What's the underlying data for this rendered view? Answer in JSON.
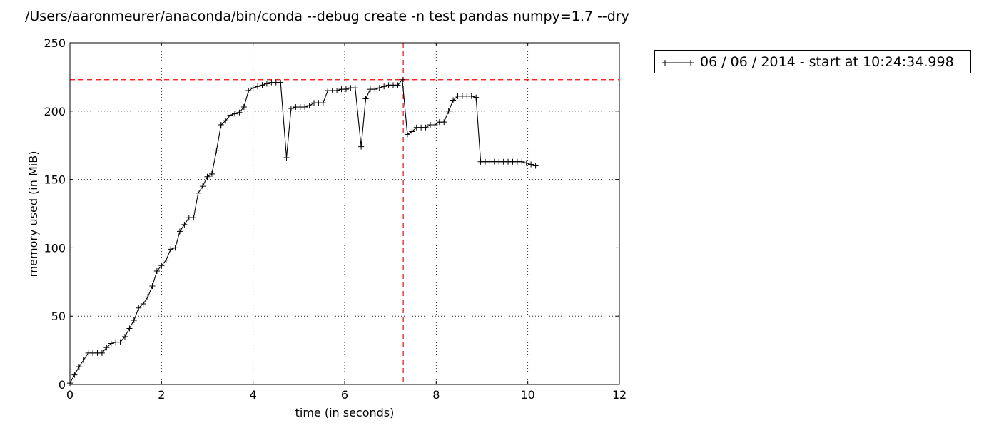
{
  "header": {
    "title": "/Users/aaronmeurer/anaconda/bin/conda --debug create -n test pandas numpy=1.7 --dry"
  },
  "legend": {
    "placement": "outside-right-top"
  },
  "chart_data": {
    "type": "line",
    "xlabel": "time (in seconds)",
    "ylabel": "memory used (in MiB)",
    "xlim": [
      0,
      12
    ],
    "ylim": [
      0,
      250
    ],
    "xticks": [
      0,
      2,
      4,
      6,
      8,
      10,
      12
    ],
    "yticks": [
      0,
      50,
      100,
      150,
      200,
      250
    ],
    "grid": true,
    "grid_style": "dotted",
    "marker": "+",
    "line_color": "#000000",
    "reference_lines": {
      "color": "#ff0000",
      "style": "dashed",
      "max_memory_y": 223,
      "max_time_x": 7.28
    },
    "series": [
      {
        "name": "06 / 06 / 2014 - start at 10:24:34.998",
        "x": [
          0,
          0.1,
          0.2,
          0.3,
          0.4,
          0.5,
          0.6,
          0.7,
          0.8,
          0.9,
          1.0,
          1.1,
          1.2,
          1.3,
          1.4,
          1.5,
          1.6,
          1.7,
          1.8,
          1.9,
          2.0,
          2.1,
          2.2,
          2.3,
          2.4,
          2.5,
          2.6,
          2.7,
          2.8,
          2.9,
          3.0,
          3.1,
          3.2,
          3.3,
          3.4,
          3.5,
          3.6,
          3.7,
          3.8,
          3.9,
          4.0,
          4.1,
          4.2,
          4.3,
          4.4,
          4.5,
          4.6,
          4.73,
          4.83,
          4.93,
          5.03,
          5.13,
          5.23,
          5.33,
          5.43,
          5.53,
          5.63,
          5.73,
          5.83,
          5.93,
          6.03,
          6.13,
          6.23,
          6.36,
          6.46,
          6.56,
          6.66,
          6.76,
          6.86,
          6.96,
          7.06,
          7.16,
          7.26,
          7.37,
          7.47,
          7.57,
          7.67,
          7.77,
          7.87,
          7.97,
          8.07,
          8.17,
          8.27,
          8.37,
          8.47,
          8.57,
          8.67,
          8.77,
          8.87,
          8.97,
          9.07,
          9.17,
          9.27,
          9.37,
          9.47,
          9.57,
          9.67,
          9.77,
          9.87,
          9.97,
          10.07,
          10.17
        ],
        "values": [
          1,
          7,
          13,
          18,
          23,
          23,
          23,
          23,
          27,
          30,
          31,
          31,
          35,
          41,
          47,
          56,
          59,
          64,
          72,
          83,
          87,
          91,
          99,
          100,
          112,
          117,
          122,
          122,
          140,
          145,
          152,
          154,
          171,
          190,
          193,
          197,
          198,
          199,
          203,
          215,
          217,
          218,
          219,
          220,
          221,
          221,
          221,
          166,
          202,
          203,
          203,
          203,
          204,
          206,
          206,
          206,
          215,
          215,
          215,
          216,
          216,
          217,
          217,
          174,
          209,
          216,
          216,
          217,
          218,
          219,
          219,
          219,
          223,
          183,
          185,
          188,
          188,
          188,
          190,
          190,
          192,
          192,
          200,
          208,
          211,
          211,
          211,
          211,
          210,
          163,
          163,
          163,
          163,
          163,
          163,
          163,
          163,
          163,
          163,
          162,
          161,
          160
        ]
      }
    ]
  }
}
